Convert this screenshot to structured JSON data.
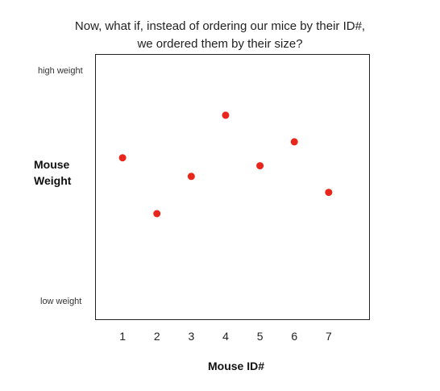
{
  "title_line1": "Now, what if, instead of ordering our mice by their ID#,",
  "title_line2": "we ordered them by their size?",
  "chart_data": {
    "type": "scatter",
    "title": "Now, what if, instead of ordering our mice by their ID#, we ordered them by their size?",
    "xlabel": "Mouse ID#",
    "ylabel": "Mouse Weight",
    "y_top_label": "high weight",
    "y_bottom_label": "low weight",
    "x_ticks": [
      1,
      2,
      3,
      4,
      5,
      6,
      7
    ],
    "xlim": [
      0.2,
      8.2
    ],
    "ylim": [
      0,
      1
    ],
    "grid": false,
    "point_color": "#e8261c",
    "points": [
      {
        "x": 1,
        "y": 0.61
      },
      {
        "x": 2,
        "y": 0.4
      },
      {
        "x": 3,
        "y": 0.54
      },
      {
        "x": 4,
        "y": 0.77
      },
      {
        "x": 5,
        "y": 0.58
      },
      {
        "x": 6,
        "y": 0.67
      },
      {
        "x": 7,
        "y": 0.48
      }
    ]
  }
}
